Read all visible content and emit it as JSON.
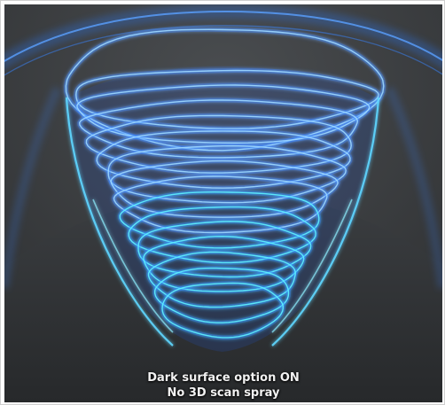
{
  "caption": {
    "line1": "Dark surface option ON",
    "line2": "No 3D scan spray"
  },
  "colors": {
    "background": "#3a3c3e",
    "surface": "#2e3033",
    "ring_core": "#9fd8ff",
    "ring_glow": "#2e7dff",
    "ring_cyan": "#5ff2ff"
  }
}
